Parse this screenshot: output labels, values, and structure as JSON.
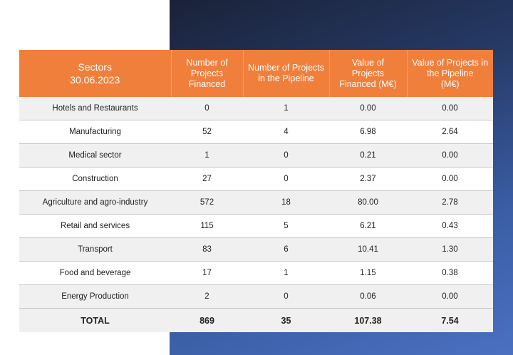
{
  "table": {
    "headers": [
      "Sectors\n30.06.2023",
      "Number of Projects Financed",
      "Number of Projects in the Pipeline",
      "Value of Projects Financed (M€)",
      "Value of Projects in the Pipeline (M€)"
    ],
    "header_lines": {
      "sectors": [
        "Sectors",
        "30.06.2023"
      ],
      "financed": [
        "Number of",
        "Projects",
        "Financed"
      ],
      "pipeline": [
        "Number of Projects",
        "in the Pipeline"
      ],
      "value_financed": [
        "Value of",
        "Projects",
        "Financed (M€)"
      ],
      "value_pipeline": [
        "Value of Projects in",
        "the Pipeline",
        "(M€)"
      ]
    },
    "rows": [
      [
        "Hotels and Restaurants",
        "0",
        "1",
        "0.00",
        "0.00"
      ],
      [
        "Manufacturing",
        "52",
        "4",
        "6.98",
        "2.64"
      ],
      [
        "Medical sector",
        "1",
        "0",
        "0.21",
        "0.00"
      ],
      [
        "Construction",
        "27",
        "0",
        "2.37",
        "0.00"
      ],
      [
        "Agriculture and agro-industry",
        "572",
        "18",
        "80.00",
        "2.78"
      ],
      [
        "Retail and services",
        "115",
        "5",
        "6.21",
        "0.43"
      ],
      [
        "Transport",
        "83",
        "6",
        "10.41",
        "1.30"
      ],
      [
        "Food and beverage",
        "17",
        "1",
        "1.15",
        "0.38"
      ],
      [
        "Energy Production",
        "2",
        "0",
        "0.06",
        "0.00"
      ]
    ],
    "total": [
      "TOTAL",
      "869",
      "35",
      "107.38",
      "7.54"
    ]
  },
  "colors": {
    "header_bg": "#f07f3c",
    "panel_dark": "#1a2238",
    "panel_light": "#4a70c0"
  }
}
